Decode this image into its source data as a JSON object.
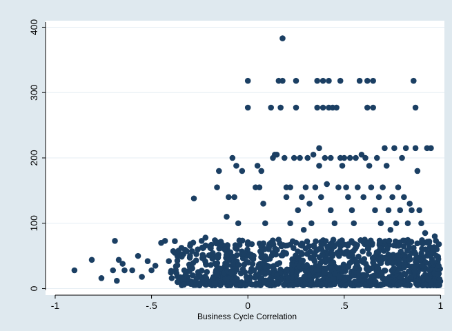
{
  "chart_data": {
    "type": "scatter",
    "title": "",
    "xlabel": "Business Cycle Correlation",
    "ylabel": "",
    "xlim": [
      -1.05,
      1.02
    ],
    "ylim": [
      -10,
      410
    ],
    "x_ticks": [
      -1,
      -0.5,
      0,
      0.5,
      1
    ],
    "x_tick_labels": [
      "-1",
      "-.5",
      "0",
      ".5",
      "1"
    ],
    "y_ticks": [
      0,
      100,
      200,
      300,
      400
    ],
    "y_tick_labels": [
      "0",
      "100",
      "200",
      "300",
      "400"
    ],
    "grid": "horizontal",
    "legend": "none",
    "colors": {
      "background": "#dfe9ef",
      "plot_area": "#ffffff",
      "marker": "#1b3f63",
      "grid": "#e6eef3",
      "axis": "#000000"
    },
    "series": [
      {
        "points": [
          [
            -0.9,
            28
          ],
          [
            -0.81,
            44
          ],
          [
            -0.76,
            16
          ],
          [
            -0.69,
            73
          ],
          [
            -0.7,
            28
          ],
          [
            -0.68,
            12
          ],
          [
            -0.67,
            44
          ],
          [
            -0.65,
            38
          ],
          [
            -0.64,
            28
          ],
          [
            -0.6,
            28
          ],
          [
            -0.57,
            50
          ],
          [
            -0.55,
            18
          ],
          [
            -0.52,
            42
          ],
          [
            -0.5,
            28
          ],
          [
            -0.48,
            35
          ],
          [
            -0.45,
            70
          ],
          [
            -0.43,
            73
          ],
          [
            -0.41,
            42
          ],
          [
            -0.38,
            55
          ],
          [
            -0.36,
            58
          ],
          [
            -0.33,
            28
          ],
          [
            -0.3,
            50
          ],
          [
            -0.28,
            138
          ],
          [
            -0.26,
            60
          ],
          [
            -0.24,
            73
          ],
          [
            -0.22,
            78
          ],
          [
            -0.19,
            52
          ],
          [
            -0.16,
            155
          ],
          [
            -0.15,
            180
          ],
          [
            -0.12,
            60
          ],
          [
            -0.11,
            110
          ],
          [
            -0.1,
            140
          ],
          [
            -0.08,
            200
          ],
          [
            -0.07,
            140
          ],
          [
            -0.06,
            188
          ],
          [
            -0.05,
            100
          ],
          [
            -0.03,
            180
          ],
          [
            0,
            318
          ],
          [
            0,
            277
          ],
          [
            0.03,
            50
          ],
          [
            0.04,
            155
          ],
          [
            0.05,
            188
          ],
          [
            0.06,
            155
          ],
          [
            0.07,
            180
          ],
          [
            0.08,
            130
          ],
          [
            0.09,
            100
          ],
          [
            0.12,
            277
          ],
          [
            0.13,
            200
          ],
          [
            0.14,
            205
          ],
          [
            0.15,
            205
          ],
          [
            0.16,
            318
          ],
          [
            0.18,
            318
          ],
          [
            0.17,
            277
          ],
          [
            0.18,
            383
          ],
          [
            0.19,
            200
          ],
          [
            0.2,
            140
          ],
          [
            0.2,
            155
          ],
          [
            0.22,
            155
          ],
          [
            0.22,
            100
          ],
          [
            0.24,
            200
          ],
          [
            0.25,
            318
          ],
          [
            0.25,
            277
          ],
          [
            0.26,
            120
          ],
          [
            0.27,
            200
          ],
          [
            0.28,
            140
          ],
          [
            0.29,
            90
          ],
          [
            0.3,
            155
          ],
          [
            0.31,
            200
          ],
          [
            0.32,
            130
          ],
          [
            0.33,
            100
          ],
          [
            0.34,
            205
          ],
          [
            0.35,
            155
          ],
          [
            0.36,
            318
          ],
          [
            0.36,
            277
          ],
          [
            0.37,
            215
          ],
          [
            0.37,
            188
          ],
          [
            0.38,
            140
          ],
          [
            0.39,
            318
          ],
          [
            0.39,
            277
          ],
          [
            0.4,
            200
          ],
          [
            0.41,
            160
          ],
          [
            0.42,
            318
          ],
          [
            0.42,
            277
          ],
          [
            0.43,
            200
          ],
          [
            0.43,
            120
          ],
          [
            0.44,
            277
          ],
          [
            0.45,
            100
          ],
          [
            0.46,
            277
          ],
          [
            0.47,
            155
          ],
          [
            0.48,
            200
          ],
          [
            0.48,
            318
          ],
          [
            0.49,
            188
          ],
          [
            0.5,
            200
          ],
          [
            0.51,
            155
          ],
          [
            0.52,
            140
          ],
          [
            0.53,
            200
          ],
          [
            0.54,
            120
          ],
          [
            0.55,
            100
          ],
          [
            0.56,
            200
          ],
          [
            0.57,
            155
          ],
          [
            0.58,
            318
          ],
          [
            0.59,
            205
          ],
          [
            0.6,
            140
          ],
          [
            0.61,
            200
          ],
          [
            0.62,
            318
          ],
          [
            0.62,
            277
          ],
          [
            0.63,
            188
          ],
          [
            0.64,
            155
          ],
          [
            0.65,
            277
          ],
          [
            0.65,
            318
          ],
          [
            0.66,
            120
          ],
          [
            0.67,
            200
          ],
          [
            0.68,
            140
          ],
          [
            0.69,
            100
          ],
          [
            0.7,
            155
          ],
          [
            0.71,
            215
          ],
          [
            0.72,
            188
          ],
          [
            0.73,
            120
          ],
          [
            0.74,
            90
          ],
          [
            0.75,
            140
          ],
          [
            0.76,
            215
          ],
          [
            0.77,
            100
          ],
          [
            0.78,
            155
          ],
          [
            0.79,
            120
          ],
          [
            0.8,
            200
          ],
          [
            0.81,
            140
          ],
          [
            0.82,
            215
          ],
          [
            0.83,
            100
          ],
          [
            0.84,
            130
          ],
          [
            0.85,
            120
          ],
          [
            0.86,
            318
          ],
          [
            0.87,
            277
          ],
          [
            0.87,
            215
          ],
          [
            0.88,
            180
          ],
          [
            0.89,
            120
          ],
          [
            0.9,
            100
          ],
          [
            0.92,
            85
          ],
          [
            0.93,
            215
          ],
          [
            0.94,
            70
          ],
          [
            0.95,
            215
          ],
          [
            0.96,
            60
          ],
          [
            0.97,
            80
          ],
          [
            0.98,
            50
          ],
          [
            0.99,
            35
          ]
        ]
      }
    ],
    "dense_band": {
      "x_range": [
        -0.4,
        1.0
      ],
      "y_range": [
        5,
        75
      ]
    }
  }
}
